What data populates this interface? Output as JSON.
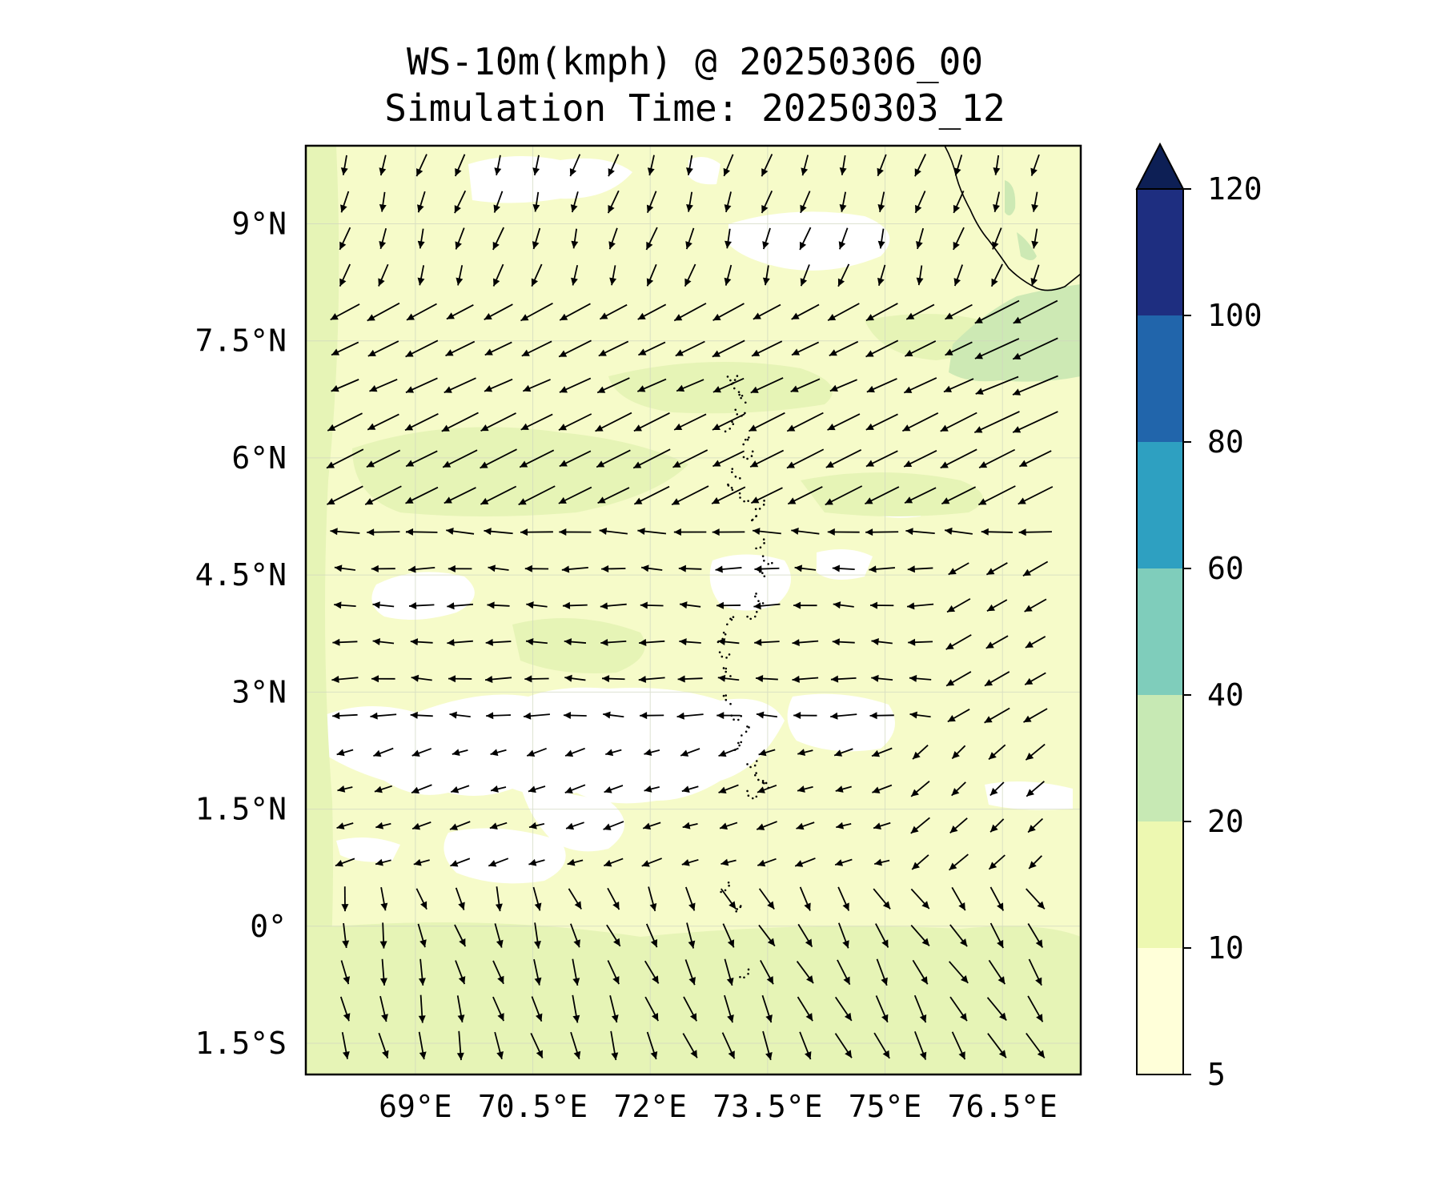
{
  "title": {
    "line1": "WS-10m(kmph) @ 20250306_00",
    "line2": "Simulation Time: 20250303_12"
  },
  "map": {
    "lon_range": [
      67.6,
      77.5
    ],
    "lat_range": [
      -1.9,
      10.0
    ],
    "lat_ticks": [
      {
        "value": 9,
        "label": "9°N"
      },
      {
        "value": 7.5,
        "label": "7.5°N"
      },
      {
        "value": 6,
        "label": "6°N"
      },
      {
        "value": 4.5,
        "label": "4.5°N"
      },
      {
        "value": 3,
        "label": "3°N"
      },
      {
        "value": 1.5,
        "label": "1.5°N"
      },
      {
        "value": 0,
        "label": "0°"
      },
      {
        "value": -1.5,
        "label": "1.5°S"
      }
    ],
    "lon_ticks": [
      {
        "value": 69,
        "label": "69°E"
      },
      {
        "value": 70.5,
        "label": "70.5°E"
      },
      {
        "value": 72,
        "label": "72°E"
      },
      {
        "value": 73.5,
        "label": "73.5°E"
      },
      {
        "value": 75,
        "label": "75°E"
      },
      {
        "value": 76.5,
        "label": "76.5°E"
      }
    ],
    "gridlines": true,
    "field": "10 m wind speed (filled contours) with wind direction arrows",
    "background_color": "#f6fbc9",
    "arrow_color": "#000000"
  },
  "colorbar": {
    "levels": [
      5,
      10,
      20,
      40,
      60,
      80,
      100,
      120
    ],
    "labels": [
      "5",
      "10",
      "20",
      "40",
      "60",
      "80",
      "100",
      "120"
    ],
    "colors": [
      "#ffffd9",
      "#edf8b1",
      "#c7e9b4",
      "#7fcdbb",
      "#2ea0c1",
      "#2165ab",
      "#1e2e80"
    ],
    "extend_color": "#0d1f55",
    "extend": "max"
  }
}
